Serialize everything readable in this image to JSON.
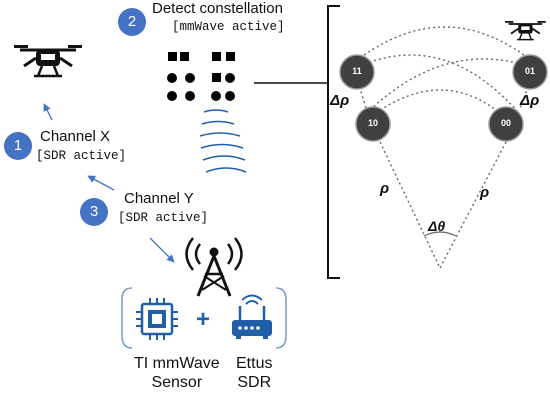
{
  "steps": [
    {
      "number": "1",
      "title": "Channel X",
      "note": "[SDR active]"
    },
    {
      "number": "2",
      "title": "Detect constellation",
      "note": "[mmWave active]"
    },
    {
      "number": "3",
      "title": "Channel Y",
      "note": "[SDR active]"
    }
  ],
  "devices": {
    "sensor_label": "TI mmWave\nSensor",
    "plus": "+",
    "sdr_label": "Ettus\nSDR"
  },
  "constellation": {
    "symbols": [
      "11",
      "01",
      "10",
      "00"
    ],
    "delta_rho": "Δρ",
    "rho": "ρ",
    "delta_theta": "Δθ"
  },
  "icons": [
    "drone-icon",
    "cell-tower-icon",
    "microchip-icon",
    "router-icon",
    "radar-waves-icon"
  ]
}
